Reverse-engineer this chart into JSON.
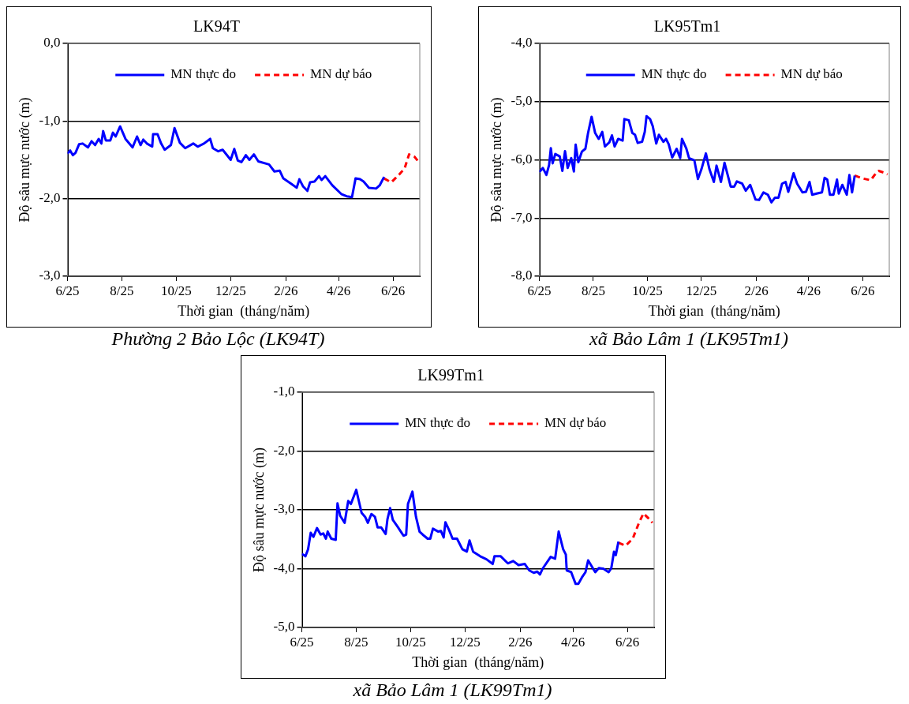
{
  "chart_data": [
    {
      "type": "line",
      "title": "LK94T",
      "xlabel": "Thời gian  (tháng/năm)",
      "ylabel": "Độ sâu mực nước (m)",
      "annotations": [
        "Phường 2 Bảo Lộc (LK94T)"
      ],
      "xlim": [
        "2025-06-01",
        "2026-07-01"
      ],
      "xticks": [
        {
          "value": "2025-06-01",
          "label": "6/25"
        },
        {
          "value": "2025-08-01",
          "label": "8/25"
        },
        {
          "value": "2025-10-01",
          "label": "10/25"
        },
        {
          "value": "2025-12-01",
          "label": "12/25"
        },
        {
          "value": "2026-02-01",
          "label": "2/26"
        },
        {
          "value": "2026-04-01",
          "label": "4/26"
        },
        {
          "value": "2026-06-01",
          "label": "6/26"
        }
      ],
      "ylim": [
        -3,
        0
      ],
      "yticks": [
        {
          "value": -3,
          "label": "-3,0"
        },
        {
          "value": -2,
          "label": "-2,0"
        },
        {
          "value": -1,
          "label": "-1,0"
        },
        {
          "value": 0,
          "label": "0,0"
        }
      ],
      "grid": "y",
      "legend": "top",
      "marker": "none",
      "series": [
        {
          "name": "MN thực đo",
          "color": "#0000ff",
          "line_style": "solid",
          "x": [
            "2025-06-01",
            "2025-06-04",
            "2025-06-07",
            "2025-06-10",
            "2025-06-14",
            "2025-06-18",
            "2025-06-24",
            "2025-06-28",
            "2025-07-02",
            "2025-07-06",
            "2025-07-09",
            "2025-07-11",
            "2025-07-14",
            "2025-07-19",
            "2025-07-22",
            "2025-07-25",
            "2025-07-30",
            "2025-08-05",
            "2025-08-13",
            "2025-08-18",
            "2025-08-22",
            "2025-08-25",
            "2025-08-29",
            "2025-09-04",
            "2025-09-05",
            "2025-09-10",
            "2025-09-14",
            "2025-09-18",
            "2025-09-25",
            "2025-09-29",
            "2025-10-05",
            "2025-10-11",
            "2025-10-20",
            "2025-10-25",
            "2025-11-01",
            "2025-11-08",
            "2025-11-11",
            "2025-11-17",
            "2025-11-22",
            "2025-12-01",
            "2025-12-05",
            "2025-12-09",
            "2025-12-13",
            "2025-12-18",
            "2025-12-22",
            "2025-12-27",
            "2026-01-01",
            "2026-01-13",
            "2026-01-19",
            "2026-01-25",
            "2026-01-29",
            "2026-02-07",
            "2026-02-13",
            "2026-02-16",
            "2026-02-20",
            "2026-02-25",
            "2026-02-28",
            "2026-03-05",
            "2026-03-10",
            "2026-03-13",
            "2026-03-17",
            "2026-03-25",
            "2026-04-04",
            "2026-04-10",
            "2026-04-16",
            "2026-04-20",
            "2026-04-25",
            "2026-04-29",
            "2026-05-05",
            "2026-05-13",
            "2026-05-17",
            "2026-05-22"
          ],
          "values": [
            -1.42,
            -1.38,
            -1.44,
            -1.41,
            -1.3,
            -1.29,
            -1.34,
            -1.26,
            -1.31,
            -1.23,
            -1.29,
            -1.13,
            -1.25,
            -1.25,
            -1.15,
            -1.2,
            -1.07,
            -1.23,
            -1.34,
            -1.2,
            -1.31,
            -1.24,
            -1.29,
            -1.33,
            -1.17,
            -1.17,
            -1.29,
            -1.37,
            -1.31,
            -1.09,
            -1.28,
            -1.35,
            -1.29,
            -1.33,
            -1.29,
            -1.23,
            -1.35,
            -1.39,
            -1.37,
            -1.5,
            -1.36,
            -1.51,
            -1.53,
            -1.44,
            -1.5,
            -1.43,
            -1.52,
            -1.56,
            -1.65,
            -1.64,
            -1.74,
            -1.81,
            -1.86,
            -1.75,
            -1.84,
            -1.9,
            -1.79,
            -1.78,
            -1.71,
            -1.76,
            -1.71,
            -1.83,
            -1.94,
            -1.97,
            -1.98,
            -1.74,
            -1.75,
            -1.78,
            -1.86,
            -1.87,
            -1.83,
            -1.72
          ]
        },
        {
          "name": "MN dự báo",
          "color": "#ff0000",
          "line_style": "dashed",
          "x": [
            "2026-05-22",
            "2026-05-30",
            "2026-06-07",
            "2026-06-14",
            "2026-06-19",
            "2026-06-25",
            "2026-06-30"
          ],
          "values": [
            -1.74,
            -1.79,
            -1.7,
            -1.61,
            -1.43,
            -1.46,
            -1.53
          ]
        }
      ]
    },
    {
      "type": "line",
      "title": "LK95Tm1",
      "xlabel": "Thời gian  (tháng/năm)",
      "ylabel": "Độ sâu mực nước (m)",
      "annotations": [
        "xã Bảo Lâm 1 (LK95Tm1)"
      ],
      "xlim": [
        "2025-06-01",
        "2026-07-01"
      ],
      "xticks": [
        {
          "value": "2025-06-01",
          "label": "6/25"
        },
        {
          "value": "2025-08-01",
          "label": "8/25"
        },
        {
          "value": "2025-10-01",
          "label": "10/25"
        },
        {
          "value": "2025-12-01",
          "label": "12/25"
        },
        {
          "value": "2026-02-01",
          "label": "2/26"
        },
        {
          "value": "2026-04-01",
          "label": "4/26"
        },
        {
          "value": "2026-06-01",
          "label": "6/26"
        }
      ],
      "ylim": [
        -8,
        -4
      ],
      "yticks": [
        {
          "value": -8,
          "label": "-8,0"
        },
        {
          "value": -7,
          "label": "-7,0"
        },
        {
          "value": -6,
          "label": "-6,0"
        },
        {
          "value": -5,
          "label": "-5,0"
        },
        {
          "value": -4,
          "label": "-4,0"
        }
      ],
      "grid": "y",
      "legend": "top",
      "marker": "none",
      "series": [
        {
          "name": "MN thực đo",
          "color": "#0000ff",
          "line_style": "solid",
          "x": [
            "2025-06-01",
            "2025-06-05",
            "2025-06-09",
            "2025-06-12",
            "2025-06-14",
            "2025-06-16",
            "2025-06-19",
            "2025-06-24",
            "2025-06-27",
            "2025-06-30",
            "2025-07-03",
            "2025-07-07",
            "2025-07-10",
            "2025-07-12",
            "2025-07-15",
            "2025-07-19",
            "2025-07-23",
            "2025-07-26",
            "2025-07-30",
            "2025-08-03",
            "2025-08-07",
            "2025-08-11",
            "2025-08-14",
            "2025-08-19",
            "2025-08-22",
            "2025-08-25",
            "2025-08-29",
            "2025-09-03",
            "2025-09-05",
            "2025-09-10",
            "2025-09-14",
            "2025-09-17",
            "2025-09-20",
            "2025-09-25",
            "2025-09-28",
            "2025-09-30",
            "2025-10-04",
            "2025-10-07",
            "2025-10-11",
            "2025-10-14",
            "2025-10-19",
            "2025-10-22",
            "2025-10-25",
            "2025-10-29",
            "2025-11-03",
            "2025-11-07",
            "2025-11-09",
            "2025-11-14",
            "2025-11-17",
            "2025-11-23",
            "2025-11-27",
            "2025-12-01",
            "2025-12-06",
            "2025-12-10",
            "2025-12-15",
            "2025-12-18",
            "2025-12-23",
            "2025-12-27",
            "2026-01-03",
            "2026-01-07",
            "2026-01-10",
            "2026-01-16",
            "2026-01-20",
            "2026-01-25",
            "2026-01-31",
            "2026-02-04",
            "2026-02-09",
            "2026-02-14",
            "2026-02-18",
            "2026-02-22",
            "2026-02-26",
            "2026-03-02",
            "2026-03-06",
            "2026-03-09",
            "2026-03-15",
            "2026-03-19",
            "2026-03-25",
            "2026-03-29",
            "2026-04-02",
            "2026-04-05",
            "2026-04-10",
            "2026-04-16",
            "2026-04-19",
            "2026-04-22",
            "2026-04-25",
            "2026-04-29",
            "2026-05-03",
            "2026-05-05",
            "2026-05-09",
            "2026-05-14",
            "2026-05-17",
            "2026-05-20",
            "2026-05-23"
          ],
          "values": [
            -6.21,
            -6.14,
            -6.26,
            -6.09,
            -5.8,
            -6.06,
            -5.9,
            -5.94,
            -6.19,
            -5.85,
            -6.14,
            -5.97,
            -6.2,
            -5.74,
            -6.04,
            -5.86,
            -5.81,
            -5.54,
            -5.26,
            -5.54,
            -5.64,
            -5.52,
            -5.77,
            -5.7,
            -5.58,
            -5.77,
            -5.64,
            -5.67,
            -5.3,
            -5.32,
            -5.54,
            -5.57,
            -5.71,
            -5.69,
            -5.52,
            -5.25,
            -5.3,
            -5.42,
            -5.72,
            -5.57,
            -5.69,
            -5.64,
            -5.73,
            -5.96,
            -5.81,
            -5.97,
            -5.64,
            -5.81,
            -5.97,
            -6.01,
            -6.33,
            -6.16,
            -5.89,
            -6.16,
            -6.38,
            -6.1,
            -6.38,
            -6.05,
            -6.46,
            -6.46,
            -6.37,
            -6.41,
            -6.53,
            -6.43,
            -6.68,
            -6.69,
            -6.56,
            -6.6,
            -6.73,
            -6.65,
            -6.65,
            -6.41,
            -6.38,
            -6.55,
            -6.23,
            -6.41,
            -6.56,
            -6.55,
            -6.38,
            -6.6,
            -6.58,
            -6.56,
            -6.31,
            -6.34,
            -6.6,
            -6.6,
            -6.34,
            -6.58,
            -6.43,
            -6.6,
            -6.26,
            -6.56,
            -6.27
          ]
        },
        {
          "name": "MN dự báo",
          "color": "#ff0000",
          "line_style": "dashed",
          "x": [
            "2026-05-23",
            "2026-06-01",
            "2026-06-10",
            "2026-06-16",
            "2026-06-19",
            "2026-06-25",
            "2026-06-29"
          ],
          "values": [
            -6.27,
            -6.32,
            -6.35,
            -6.23,
            -6.19,
            -6.22,
            -6.25
          ]
        }
      ]
    },
    {
      "type": "line",
      "title": "LK99Tm1",
      "xlabel": "Thời gian  (tháng/năm)",
      "ylabel": "Độ sâu mực nước (m)",
      "annotations": [
        "xã Bảo Lâm 1 (LK99Tm1)"
      ],
      "xlim": [
        "2025-06-01",
        "2026-07-01"
      ],
      "xticks": [
        {
          "value": "2025-06-01",
          "label": "6/25"
        },
        {
          "value": "2025-08-01",
          "label": "8/25"
        },
        {
          "value": "2025-10-01",
          "label": "10/25"
        },
        {
          "value": "2025-12-01",
          "label": "12/25"
        },
        {
          "value": "2026-02-01",
          "label": "2/26"
        },
        {
          "value": "2026-04-01",
          "label": "4/26"
        },
        {
          "value": "2026-06-01",
          "label": "6/26"
        }
      ],
      "ylim": [
        -5,
        -1
      ],
      "yticks": [
        {
          "value": -5,
          "label": "-5,0"
        },
        {
          "value": -4,
          "label": "-4,0"
        },
        {
          "value": -3,
          "label": "-3,0"
        },
        {
          "value": -2,
          "label": "-2,0"
        },
        {
          "value": -1,
          "label": "-1,0"
        }
      ],
      "grid": "y",
      "legend": "top",
      "marker": "none",
      "series": [
        {
          "name": "MN thực đo",
          "color": "#0000ff",
          "line_style": "solid",
          "x": [
            "2025-06-01",
            "2025-06-05",
            "2025-06-08",
            "2025-06-11",
            "2025-06-14",
            "2025-06-18",
            "2025-06-22",
            "2025-06-25",
            "2025-06-28",
            "2025-06-30",
            "2025-07-04",
            "2025-07-09",
            "2025-07-11",
            "2025-07-14",
            "2025-07-19",
            "2025-07-23",
            "2025-07-26",
            "2025-08-01",
            "2025-08-07",
            "2025-08-11",
            "2025-08-14",
            "2025-08-18",
            "2025-08-22",
            "2025-08-25",
            "2025-08-29",
            "2025-09-03",
            "2025-09-05",
            "2025-09-08",
            "2025-09-11",
            "2025-09-17",
            "2025-09-23",
            "2025-09-26",
            "2025-09-28",
            "2025-10-03",
            "2025-10-07",
            "2025-10-11",
            "2025-10-16",
            "2025-10-20",
            "2025-10-23",
            "2025-10-26",
            "2025-11-01",
            "2025-11-04",
            "2025-11-07",
            "2025-11-09",
            "2025-11-13",
            "2025-11-17",
            "2025-11-22",
            "2025-11-28",
            "2025-12-03",
            "2025-12-06",
            "2025-12-10",
            "2025-12-18",
            "2025-12-25",
            "2026-01-01",
            "2026-01-03",
            "2026-01-10",
            "2026-01-18",
            "2026-01-24",
            "2026-01-30",
            "2026-02-06",
            "2026-02-11",
            "2026-02-16",
            "2026-02-20",
            "2026-02-23",
            "2026-02-26",
            "2026-03-07",
            "2026-03-12",
            "2026-03-16",
            "2026-03-21",
            "2026-03-24",
            "2026-03-25",
            "2026-03-30",
            "2026-04-04",
            "2026-04-07",
            "2026-04-11",
            "2026-04-15",
            "2026-04-18",
            "2026-04-22",
            "2026-04-26",
            "2026-04-30",
            "2026-05-05",
            "2026-05-11",
            "2026-05-14",
            "2026-05-17",
            "2026-05-19",
            "2026-05-22"
          ],
          "values": [
            -3.75,
            -3.79,
            -3.67,
            -3.39,
            -3.46,
            -3.31,
            -3.42,
            -3.4,
            -3.49,
            -3.37,
            -3.49,
            -3.51,
            -2.89,
            -3.1,
            -3.22,
            -2.85,
            -2.9,
            -2.66,
            -3.05,
            -3.12,
            -3.22,
            -3.07,
            -3.12,
            -3.3,
            -3.3,
            -3.41,
            -3.16,
            -2.97,
            -3.17,
            -3.3,
            -3.44,
            -3.42,
            -2.9,
            -2.69,
            -3.12,
            -3.37,
            -3.44,
            -3.49,
            -3.49,
            -3.32,
            -3.37,
            -3.36,
            -3.47,
            -3.21,
            -3.34,
            -3.49,
            -3.49,
            -3.67,
            -3.71,
            -3.52,
            -3.71,
            -3.79,
            -3.84,
            -3.92,
            -3.79,
            -3.79,
            -3.91,
            -3.87,
            -3.94,
            -3.92,
            -4.03,
            -4.07,
            -4.05,
            -4.1,
            -4.0,
            -3.8,
            -3.83,
            -3.37,
            -3.67,
            -3.76,
            -4.03,
            -4.06,
            -4.26,
            -4.26,
            -4.15,
            -4.06,
            -3.86,
            -3.96,
            -4.06,
            -3.99,
            -4.0,
            -4.06,
            -3.99,
            -3.71,
            -3.77,
            -3.54
          ]
        },
        {
          "name": "MN dự báo",
          "color": "#ff0000",
          "line_style": "dashed",
          "x": [
            "2026-05-22",
            "2026-05-30",
            "2026-06-07",
            "2026-06-14",
            "2026-06-19",
            "2026-06-25",
            "2026-06-29"
          ],
          "values": [
            -3.56,
            -3.61,
            -3.49,
            -3.22,
            -3.06,
            -3.15,
            -3.22
          ]
        }
      ]
    }
  ]
}
